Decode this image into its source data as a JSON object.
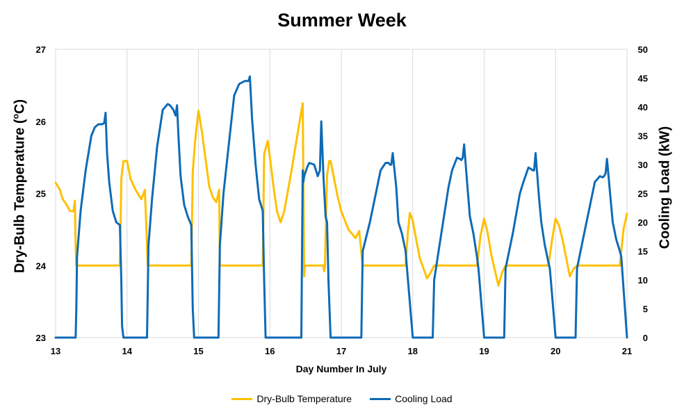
{
  "chart_data": {
    "type": "line",
    "title": "Summer Week",
    "xlabel": "Day Number In July",
    "ylabel_left": "Dry-Bulb Temperature (oC)",
    "ylabel_left_main": "Dry-Bulb Temperature (",
    "ylabel_left_sup": "o",
    "ylabel_left_end": "C)",
    "ylabel_right": "Cooling Load (kW)",
    "xlim": [
      13,
      21
    ],
    "ylim_left": [
      23,
      27
    ],
    "ylim_right": [
      0,
      50
    ],
    "x_ticks": [
      13,
      14,
      15,
      16,
      17,
      18,
      19,
      20,
      21
    ],
    "y_left_ticks": [
      23,
      24,
      25,
      26,
      27
    ],
    "y_right_ticks": [
      0,
      5,
      10,
      15,
      20,
      25,
      30,
      35,
      40,
      45,
      50
    ],
    "grid": "vertical",
    "legend_position": "bottom",
    "series": [
      {
        "name": "Dry-Bulb Temperature",
        "axis": "left",
        "color": "#FFC000",
        "x": [
          13.0,
          13.06,
          13.1,
          13.15,
          13.2,
          13.25,
          13.27,
          13.28,
          13.29,
          13.3,
          13.4,
          13.5,
          13.6,
          13.7,
          13.9,
          13.92,
          13.95,
          14.0,
          14.05,
          14.12,
          14.2,
          14.25,
          14.28,
          14.29,
          14.3,
          14.5,
          14.7,
          14.9,
          14.92,
          14.95,
          15.0,
          15.05,
          15.15,
          15.2,
          15.25,
          15.29,
          15.3,
          15.5,
          15.7,
          15.9,
          15.92,
          15.97,
          16.0,
          16.05,
          16.1,
          16.15,
          16.2,
          16.3,
          16.4,
          16.46,
          16.48,
          16.49,
          16.5,
          16.6,
          16.7,
          16.72,
          16.74,
          16.75,
          16.76,
          16.77,
          16.8,
          16.83,
          16.85,
          16.9,
          16.95,
          17.0,
          17.1,
          17.2,
          17.25,
          17.3,
          17.5,
          17.7,
          17.9,
          17.93,
          17.96,
          18.0,
          18.05,
          18.1,
          18.2,
          18.25,
          18.3,
          18.5,
          18.7,
          18.9,
          18.95,
          19.0,
          19.05,
          19.1,
          19.2,
          19.25,
          19.3,
          19.5,
          19.7,
          19.9,
          19.95,
          20.0,
          20.05,
          20.1,
          20.2,
          20.25,
          20.3,
          20.5,
          20.7,
          20.9,
          20.95,
          21.0
        ],
        "y": [
          25.15,
          25.05,
          24.92,
          24.85,
          24.76,
          24.75,
          24.9,
          24.3,
          24.0,
          24.0,
          24.0,
          24.0,
          24.0,
          24.0,
          24.0,
          25.2,
          25.45,
          25.45,
          25.2,
          25.05,
          24.92,
          25.05,
          24.3,
          24.0,
          24.0,
          24.0,
          24.0,
          24.0,
          25.3,
          25.7,
          26.15,
          25.85,
          25.1,
          24.95,
          24.88,
          25.05,
          24.0,
          24.0,
          24.0,
          24.0,
          25.55,
          25.73,
          25.5,
          25.1,
          24.75,
          24.6,
          24.75,
          25.3,
          25.9,
          26.25,
          23.85,
          24.0,
          24.0,
          24.0,
          24.0,
          24.0,
          24.0,
          24.0,
          23.92,
          24.0,
          25.25,
          25.45,
          25.45,
          25.2,
          24.95,
          24.75,
          24.5,
          24.38,
          24.48,
          24.0,
          24.0,
          24.0,
          24.0,
          24.45,
          24.73,
          24.62,
          24.35,
          24.1,
          23.82,
          23.9,
          24.0,
          24.0,
          24.0,
          24.0,
          24.42,
          24.65,
          24.45,
          24.15,
          23.72,
          23.9,
          24.0,
          24.0,
          24.0,
          24.0,
          24.35,
          24.65,
          24.55,
          24.35,
          23.85,
          23.95,
          24.0,
          24.0,
          24.0,
          24.0,
          24.5,
          24.72
        ]
      },
      {
        "name": "Cooling Load",
        "axis": "right",
        "color": "#0E6AB5",
        "x": [
          13.0,
          13.28,
          13.29,
          13.3,
          13.35,
          13.42,
          13.5,
          13.55,
          13.6,
          13.65,
          13.68,
          13.7,
          13.72,
          13.75,
          13.8,
          13.85,
          13.9,
          13.92,
          13.93,
          13.95,
          14.0,
          14.28,
          14.3,
          14.35,
          14.42,
          14.5,
          14.57,
          14.6,
          14.65,
          14.68,
          14.7,
          14.72,
          14.75,
          14.8,
          14.85,
          14.9,
          14.92,
          14.94,
          15.0,
          15.28,
          15.3,
          15.35,
          15.42,
          15.5,
          15.57,
          15.65,
          15.7,
          15.72,
          15.75,
          15.8,
          15.85,
          15.9,
          15.92,
          15.94,
          16.0,
          16.44,
          16.46,
          16.47,
          16.48,
          16.52,
          16.55,
          16.62,
          16.67,
          16.7,
          16.72,
          16.75,
          16.78,
          16.8,
          16.82,
          16.85,
          17.28,
          17.3,
          17.4,
          17.5,
          17.55,
          17.62,
          17.66,
          17.68,
          17.7,
          17.72,
          17.77,
          17.8,
          17.85,
          17.9,
          17.92,
          18.0,
          18.28,
          18.3,
          18.4,
          18.5,
          18.55,
          18.62,
          18.66,
          18.68,
          18.7,
          18.72,
          18.77,
          18.8,
          18.85,
          18.9,
          18.92,
          19.0,
          19.28,
          19.3,
          19.4,
          19.5,
          19.55,
          19.62,
          19.66,
          19.68,
          19.7,
          19.72,
          19.77,
          19.8,
          19.85,
          19.9,
          19.92,
          20.0,
          20.28,
          20.3,
          20.4,
          20.5,
          20.55,
          20.62,
          20.66,
          20.68,
          20.7,
          20.72,
          20.77,
          20.8,
          20.85,
          20.9,
          20.92,
          21.0
        ],
        "y": [
          0,
          0,
          5,
          14,
          22,
          29,
          35,
          36.5,
          37.0,
          37.0,
          37.2,
          39.0,
          32.0,
          27.0,
          22.0,
          20.0,
          19.5,
          10,
          2,
          0,
          0,
          0,
          16,
          24,
          33,
          39.5,
          40.5,
          40.3,
          39.5,
          38.5,
          40.3,
          35.0,
          28.0,
          23.0,
          21.0,
          19.5,
          5,
          0,
          0,
          0,
          16,
          25,
          33,
          42,
          44,
          44.5,
          44.5,
          45.3,
          38.0,
          30.0,
          24.0,
          22.0,
          10,
          0,
          0,
          0,
          29,
          27,
          28,
          29.5,
          30.3,
          30.0,
          28.0,
          29.0,
          37.5,
          28.0,
          21.0,
          20.0,
          10,
          0,
          0,
          15,
          20,
          26,
          29,
          30.3,
          30.3,
          30.0,
          30.0,
          32.0,
          26.0,
          20.0,
          18.0,
          15.0,
          12,
          0,
          0,
          10,
          18,
          26,
          29,
          31.2,
          31.0,
          30.8,
          31.2,
          33.5,
          25.5,
          21.0,
          18.0,
          14.0,
          12,
          0,
          0,
          12,
          18,
          25,
          27,
          29.5,
          29.2,
          29.0,
          29.0,
          32.0,
          24.0,
          20.0,
          16.0,
          13.0,
          12,
          0,
          0,
          12,
          18,
          24,
          27,
          28.0,
          27.8,
          28.0,
          28.5,
          31.0,
          24.0,
          20.0,
          17.0,
          15.0,
          14.0,
          0
        ]
      }
    ]
  }
}
